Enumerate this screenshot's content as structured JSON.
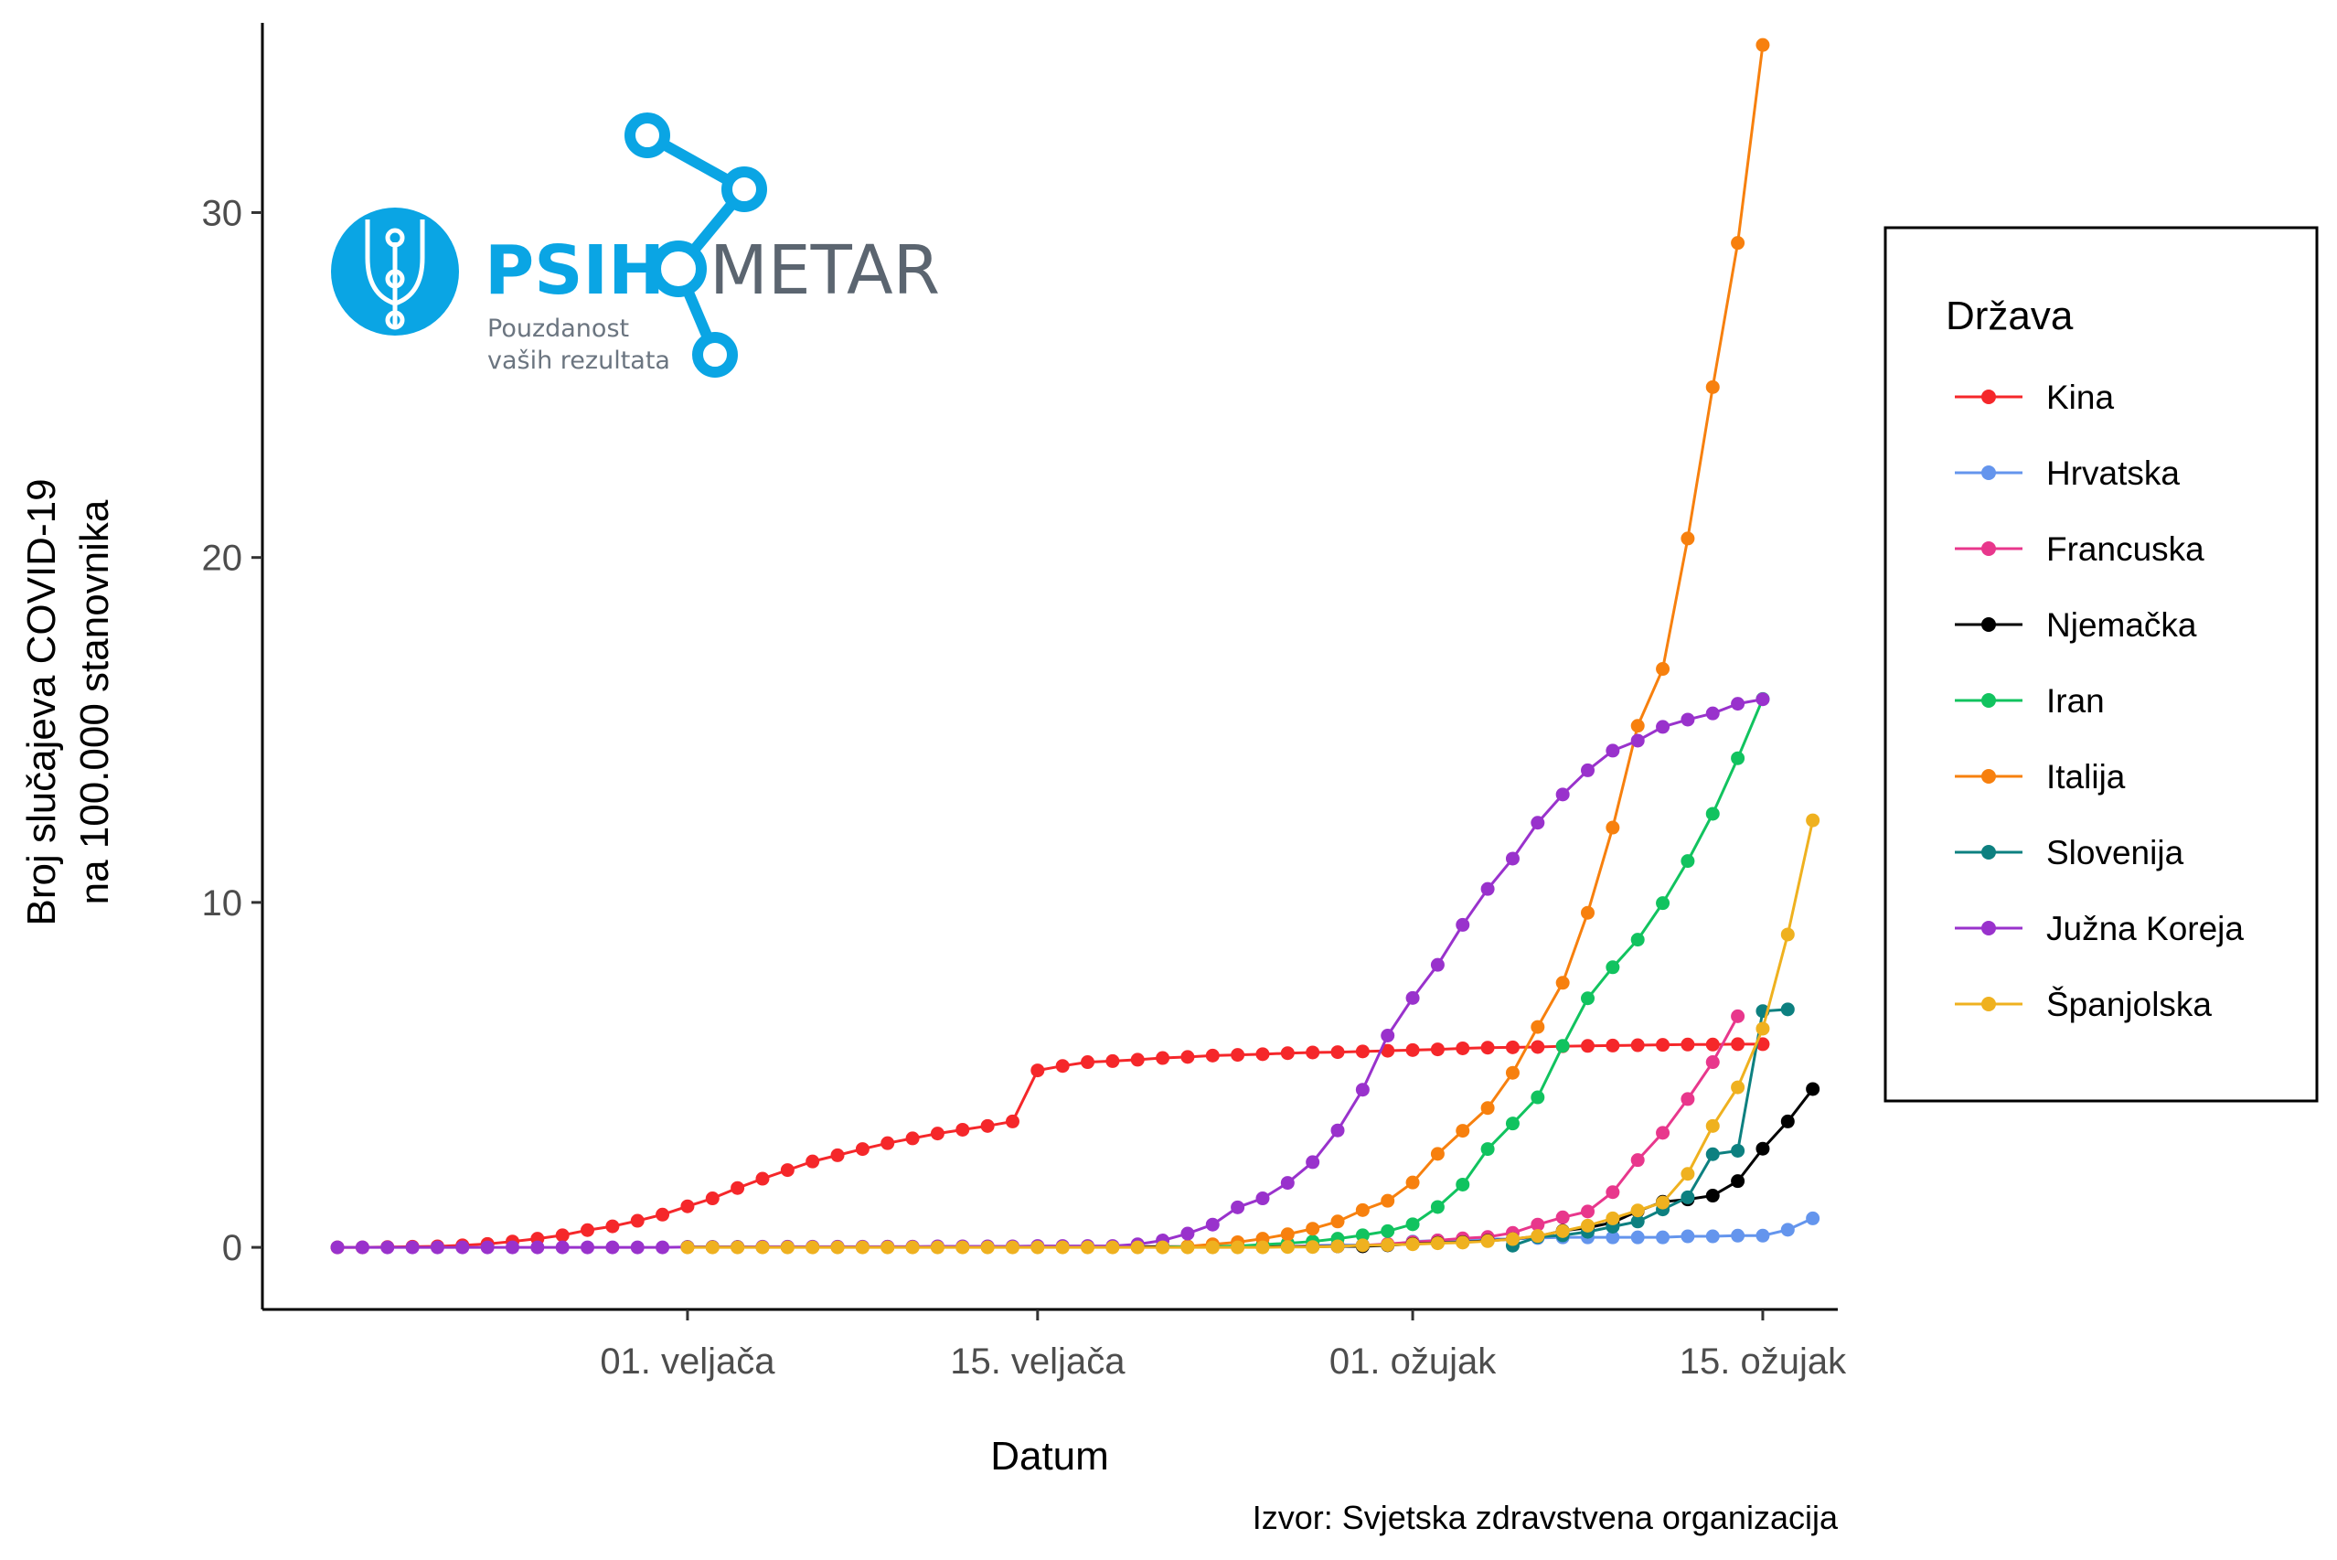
{
  "logo": {
    "brand_left": "PSIH",
    "brand_right": "METAR",
    "tagline_1": "Pouzdanost",
    "tagline_2": "vaših rezultata",
    "color_primary": "#0aa5e4",
    "color_text": "#5b6570"
  },
  "chart_data": {
    "type": "line",
    "xlabel": "Datum",
    "ylabel_line1": "Broj slučajeva COVID-19",
    "ylabel_line2": "na 100.000 stanovnika",
    "caption": "Izvor: Svjetska zdravstvena organizacija",
    "x_start": "2020-01-18",
    "x_end": "2020-03-15",
    "xlim": [
      "2020-01-15",
      "2020-03-18"
    ],
    "ylim": [
      -1.8,
      35.5
    ],
    "yticks": [
      0,
      10,
      20,
      30
    ],
    "xticks": [
      {
        "date": "2020-02-01",
        "label": "01. veljača"
      },
      {
        "date": "2020-02-15",
        "label": "15. veljača"
      },
      {
        "date": "2020-03-01",
        "label": "01. ožujak"
      },
      {
        "date": "2020-03-15",
        "label": "15. ožujak"
      }
    ],
    "grid": false,
    "legend_title": "Država",
    "legend_position": "right",
    "series": [
      {
        "name": "Kina",
        "color": "#f5272a",
        "start": "2020-01-18",
        "values": [
          0,
          0,
          0.01,
          0.02,
          0.03,
          0.06,
          0.1,
          0.17,
          0.25,
          0.35,
          0.5,
          0.61,
          0.77,
          0.95,
          1.19,
          1.42,
          1.72,
          1.99,
          2.24,
          2.49,
          2.67,
          2.85,
          3.02,
          3.16,
          3.3,
          3.41,
          3.52,
          3.65,
          5.13,
          5.26,
          5.37,
          5.4,
          5.44,
          5.49,
          5.52,
          5.56,
          5.58,
          5.6,
          5.63,
          5.65,
          5.66,
          5.68,
          5.7,
          5.72,
          5.74,
          5.77,
          5.79,
          5.8,
          5.81,
          5.83,
          5.84,
          5.85,
          5.86,
          5.87,
          5.88,
          5.88,
          5.89,
          5.89
        ]
      },
      {
        "name": "Hrvatska",
        "color": "#6495ed",
        "start": "2020-02-25",
        "values": [
          0.02,
          0.05,
          0.07,
          0.07,
          0.07,
          0.17,
          0.2,
          0.22,
          0.24,
          0.24,
          0.27,
          0.29,
          0.29,
          0.29,
          0.29,
          0.29,
          0.32,
          0.32,
          0.34,
          0.34,
          0.51,
          0.84
        ]
      },
      {
        "name": "Francuska",
        "color": "#e8378c",
        "start": "2020-02-01",
        "values": [
          0.01,
          0.01,
          0.01,
          0.01,
          0.01,
          0.01,
          0.01,
          0.01,
          0.02,
          0.02,
          0.02,
          0.02,
          0.02,
          0.02,
          0.02,
          0.02,
          0.02,
          0.02,
          0.02,
          0.02,
          0.02,
          0.02,
          0.02,
          0.02,
          0.03,
          0.03,
          0.03,
          0.06,
          0.1,
          0.15,
          0.2,
          0.26,
          0.3,
          0.42,
          0.66,
          0.87,
          1.04,
          1.6,
          2.53,
          3.32,
          4.3,
          5.37,
          6.7
        ]
      },
      {
        "name": "Njemačka",
        "color": "#000000",
        "start": "2020-02-01",
        "values": [
          0.01,
          0.01,
          0.01,
          0.01,
          0.01,
          0.01,
          0.01,
          0.01,
          0.01,
          0.01,
          0.01,
          0.01,
          0.02,
          0.02,
          0.02,
          0.02,
          0.02,
          0.02,
          0.02,
          0.02,
          0.02,
          0.02,
          0.02,
          0.02,
          0.02,
          0.02,
          0.03,
          0.03,
          0.06,
          0.1,
          0.13,
          0.15,
          0.19,
          0.24,
          0.32,
          0.48,
          0.57,
          0.72,
          1.05,
          1.32,
          1.39,
          1.5,
          1.92,
          2.86,
          3.65,
          4.59
        ]
      },
      {
        "name": "Iran",
        "color": "#11c35f",
        "start": "2020-02-20",
        "values": [
          0.01,
          0.02,
          0.03,
          0.04,
          0.08,
          0.12,
          0.17,
          0.25,
          0.35,
          0.47,
          0.67,
          1.17,
          1.82,
          2.85,
          3.59,
          4.35,
          5.84,
          7.22,
          8.12,
          8.92,
          9.98,
          11.2,
          12.57,
          14.18,
          15.9
        ]
      },
      {
        "name": "Italija",
        "color": "#f7800e",
        "start": "2020-02-21",
        "values": [
          0.03,
          0.09,
          0.15,
          0.25,
          0.38,
          0.54,
          0.75,
          1.08,
          1.35,
          1.88,
          2.71,
          3.38,
          4.04,
          5.06,
          6.39,
          7.67,
          9.7,
          12.17,
          15.12,
          16.77,
          20.55,
          24.94,
          29.12,
          34.86
        ]
      },
      {
        "name": "Slovenija",
        "color": "#0d8080",
        "start": "2020-03-05",
        "values": [
          0.05,
          0.3,
          0.35,
          0.45,
          0.6,
          0.75,
          1.1,
          1.45,
          2.7,
          2.8,
          6.85,
          6.9
        ]
      },
      {
        "name": "Južna Koreja",
        "color": "#9932cc",
        "start": "2020-01-18",
        "values": [
          0,
          0,
          0,
          0,
          0,
          0,
          0,
          0,
          0,
          0,
          0,
          0,
          0,
          0,
          0.01,
          0.01,
          0.01,
          0.02,
          0.02,
          0.02,
          0.02,
          0.02,
          0.02,
          0.02,
          0.03,
          0.03,
          0.03,
          0.03,
          0.04,
          0.04,
          0.04,
          0.04,
          0.09,
          0.2,
          0.4,
          0.66,
          1.16,
          1.42,
          1.87,
          2.47,
          3.39,
          4.57,
          6.14,
          7.23,
          8.19,
          9.35,
          10.39,
          11.27,
          12.31,
          13.13,
          13.83,
          14.4,
          14.69,
          15.09,
          15.3,
          15.48,
          15.76,
          15.89
        ]
      },
      {
        "name": "Španjolska",
        "color": "#efb11f",
        "start": "2020-02-01",
        "values": [
          0,
          0,
          0,
          0,
          0,
          0,
          0,
          0,
          0,
          0,
          0,
          0,
          0,
          0,
          0,
          0,
          0,
          0,
          0,
          0,
          0,
          0,
          0,
          0,
          0.01,
          0.01,
          0.03,
          0.06,
          0.07,
          0.09,
          0.12,
          0.14,
          0.18,
          0.24,
          0.33,
          0.47,
          0.63,
          0.84,
          1.07,
          1.3,
          2.13,
          3.52,
          4.64,
          6.34,
          9.07,
          12.38
        ]
      }
    ]
  }
}
